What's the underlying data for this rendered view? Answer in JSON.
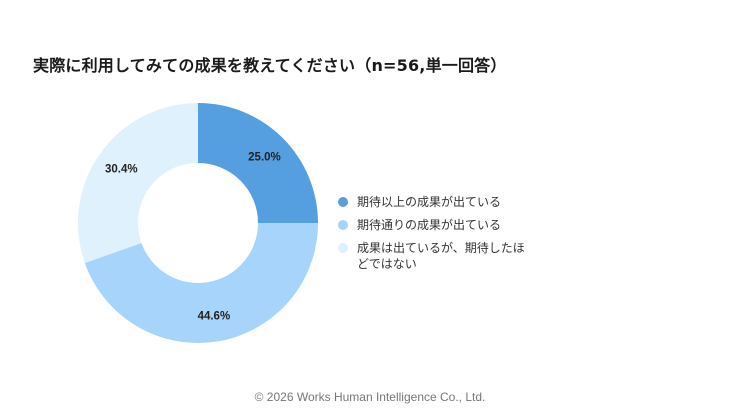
{
  "title": "実際に利用してみての成果を教えてください（n=56,単一回答）",
  "footer": "© 2026 Works Human Intelligence Co., Ltd.",
  "chart_data": {
    "type": "pie",
    "variant": "donut",
    "title": "実際に利用してみての成果を教えてください（n=56,単一回答）",
    "n": 56,
    "categories": [
      "期待以上の成果が出ている",
      "期待通りの成果が出ている",
      "成果は出ているが、期待したほどではない"
    ],
    "values": [
      25.0,
      44.6,
      30.4
    ],
    "labels": [
      "25.0%",
      "44.6%",
      "30.4%"
    ],
    "colors": [
      "#559ee0",
      "#a6d4fa",
      "#dff1fd"
    ],
    "start_angle_deg": 0,
    "direction": "clockwise",
    "legend_position": "right"
  },
  "legend": {
    "items": [
      {
        "label": "期待以上の成果が出ている",
        "color": "#559ee0"
      },
      {
        "label": "期待通りの成果が出ている",
        "color": "#a6d4fa"
      },
      {
        "label": "成果は出ているが、期待したほどではない",
        "color": "#dff1fd"
      }
    ]
  }
}
